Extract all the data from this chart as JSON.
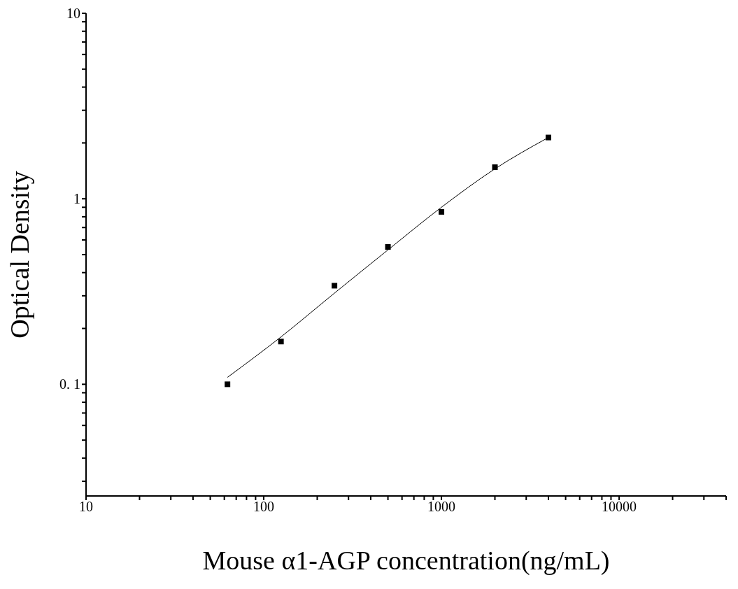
{
  "chart_data": {
    "type": "scatter",
    "xlabel": "Mouse α1-AGP concentration(ng/mL)",
    "ylabel": "Optical Density",
    "log": "xy",
    "grid": false,
    "marker": "square",
    "xlim": [
      10,
      40000
    ],
    "ylim": [
      0.025,
      10
    ],
    "xticks": [
      10,
      {
        "value": 20,
        "label": null
      },
      {
        "value": 30,
        "label": null
      },
      {
        "value": 40,
        "label": null
      },
      {
        "value": 50,
        "label": null
      },
      {
        "value": 60,
        "label": null
      },
      {
        "value": 70,
        "label": null
      },
      {
        "value": 80,
        "label": null
      },
      {
        "value": 90,
        "label": null
      },
      100,
      {
        "value": 200,
        "label": null
      },
      {
        "value": 300,
        "label": null
      },
      {
        "value": 400,
        "label": null
      },
      {
        "value": 500,
        "label": null
      },
      {
        "value": 600,
        "label": null
      },
      {
        "value": 700,
        "label": null
      },
      {
        "value": 800,
        "label": null
      },
      {
        "value": 900,
        "label": null
      },
      1000,
      {
        "value": 2000,
        "label": null
      },
      {
        "value": 3000,
        "label": null
      },
      {
        "value": 4000,
        "label": null
      },
      {
        "value": 5000,
        "label": null
      },
      {
        "value": 6000,
        "label": null
      },
      {
        "value": 7000,
        "label": null
      },
      {
        "value": 8000,
        "label": null
      },
      {
        "value": 9000,
        "label": null
      },
      10000,
      {
        "value": 20000,
        "label": null
      },
      {
        "value": 30000,
        "label": null
      },
      {
        "value": 40000,
        "label": null
      }
    ],
    "yticks": [
      {
        "value": 0.03,
        "label": null
      },
      {
        "value": 0.04,
        "label": null
      },
      {
        "value": 0.05,
        "label": null
      },
      {
        "value": 0.06,
        "label": null
      },
      {
        "value": 0.07,
        "label": null
      },
      {
        "value": 0.08,
        "label": null
      },
      {
        "value": 0.09,
        "label": null
      },
      {
        "value": 0.1,
        "label": "0. 1"
      },
      {
        "value": 0.2,
        "label": null
      },
      {
        "value": 0.3,
        "label": null
      },
      {
        "value": 0.4,
        "label": null
      },
      {
        "value": 0.5,
        "label": null
      },
      {
        "value": 0.6,
        "label": null
      },
      {
        "value": 0.7,
        "label": null
      },
      {
        "value": 0.8,
        "label": null
      },
      {
        "value": 0.9,
        "label": null
      },
      1,
      {
        "value": 2,
        "label": null
      },
      {
        "value": 3,
        "label": null
      },
      {
        "value": 4,
        "label": null
      },
      {
        "value": 5,
        "label": null
      },
      {
        "value": 6,
        "label": null
      },
      {
        "value": 7,
        "label": null
      },
      {
        "value": 8,
        "label": null
      },
      {
        "value": 9,
        "label": null
      },
      10
    ],
    "series": [
      {
        "color": "#000000",
        "x": [
          62.5,
          125,
          250,
          500,
          1000,
          2000,
          4000
        ],
        "values": [
          0.1,
          0.17,
          0.34,
          0.55,
          0.85,
          1.48,
          2.14
        ]
      },
      {
        "type": "line",
        "color": "#000000",
        "line_style": "solid",
        "marker": "none",
        "x": [
          62.5,
          125,
          250,
          500,
          1000,
          2000,
          4000
        ],
        "values": [
          0.109,
          0.18,
          0.31,
          0.53,
          0.9,
          1.45,
          2.14
        ]
      }
    ]
  }
}
